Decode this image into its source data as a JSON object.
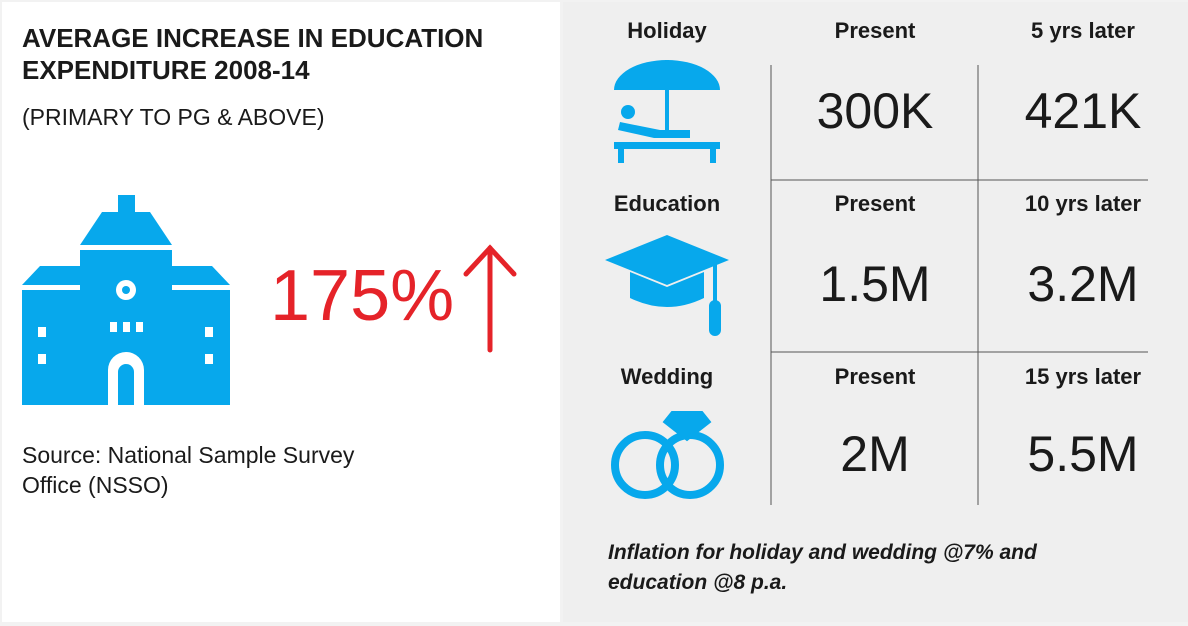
{
  "left": {
    "title": "AVERAGE INCREASE IN EDUCATION EXPENDITURE 2008-14",
    "subtitle": "(PRIMARY TO PG & ABOVE)",
    "stat": "175%",
    "source": "Source: National Sample Survey Office (NSSO)"
  },
  "table": {
    "rows": [
      {
        "goal": "Holiday",
        "present_label": "Present",
        "later_label": "5 yrs later",
        "present": "300K",
        "later": "421K"
      },
      {
        "goal": "Education",
        "present_label": "Present",
        "later_label": "10 yrs later",
        "present": "1.5M",
        "later": "3.2M"
      },
      {
        "goal": "Wedding",
        "present_label": "Present",
        "later_label": "15 yrs later",
        "present": "2M",
        "later": "5.5M"
      }
    ]
  },
  "note": "Inflation for holiday and wedding @7% and education @8 p.a."
}
